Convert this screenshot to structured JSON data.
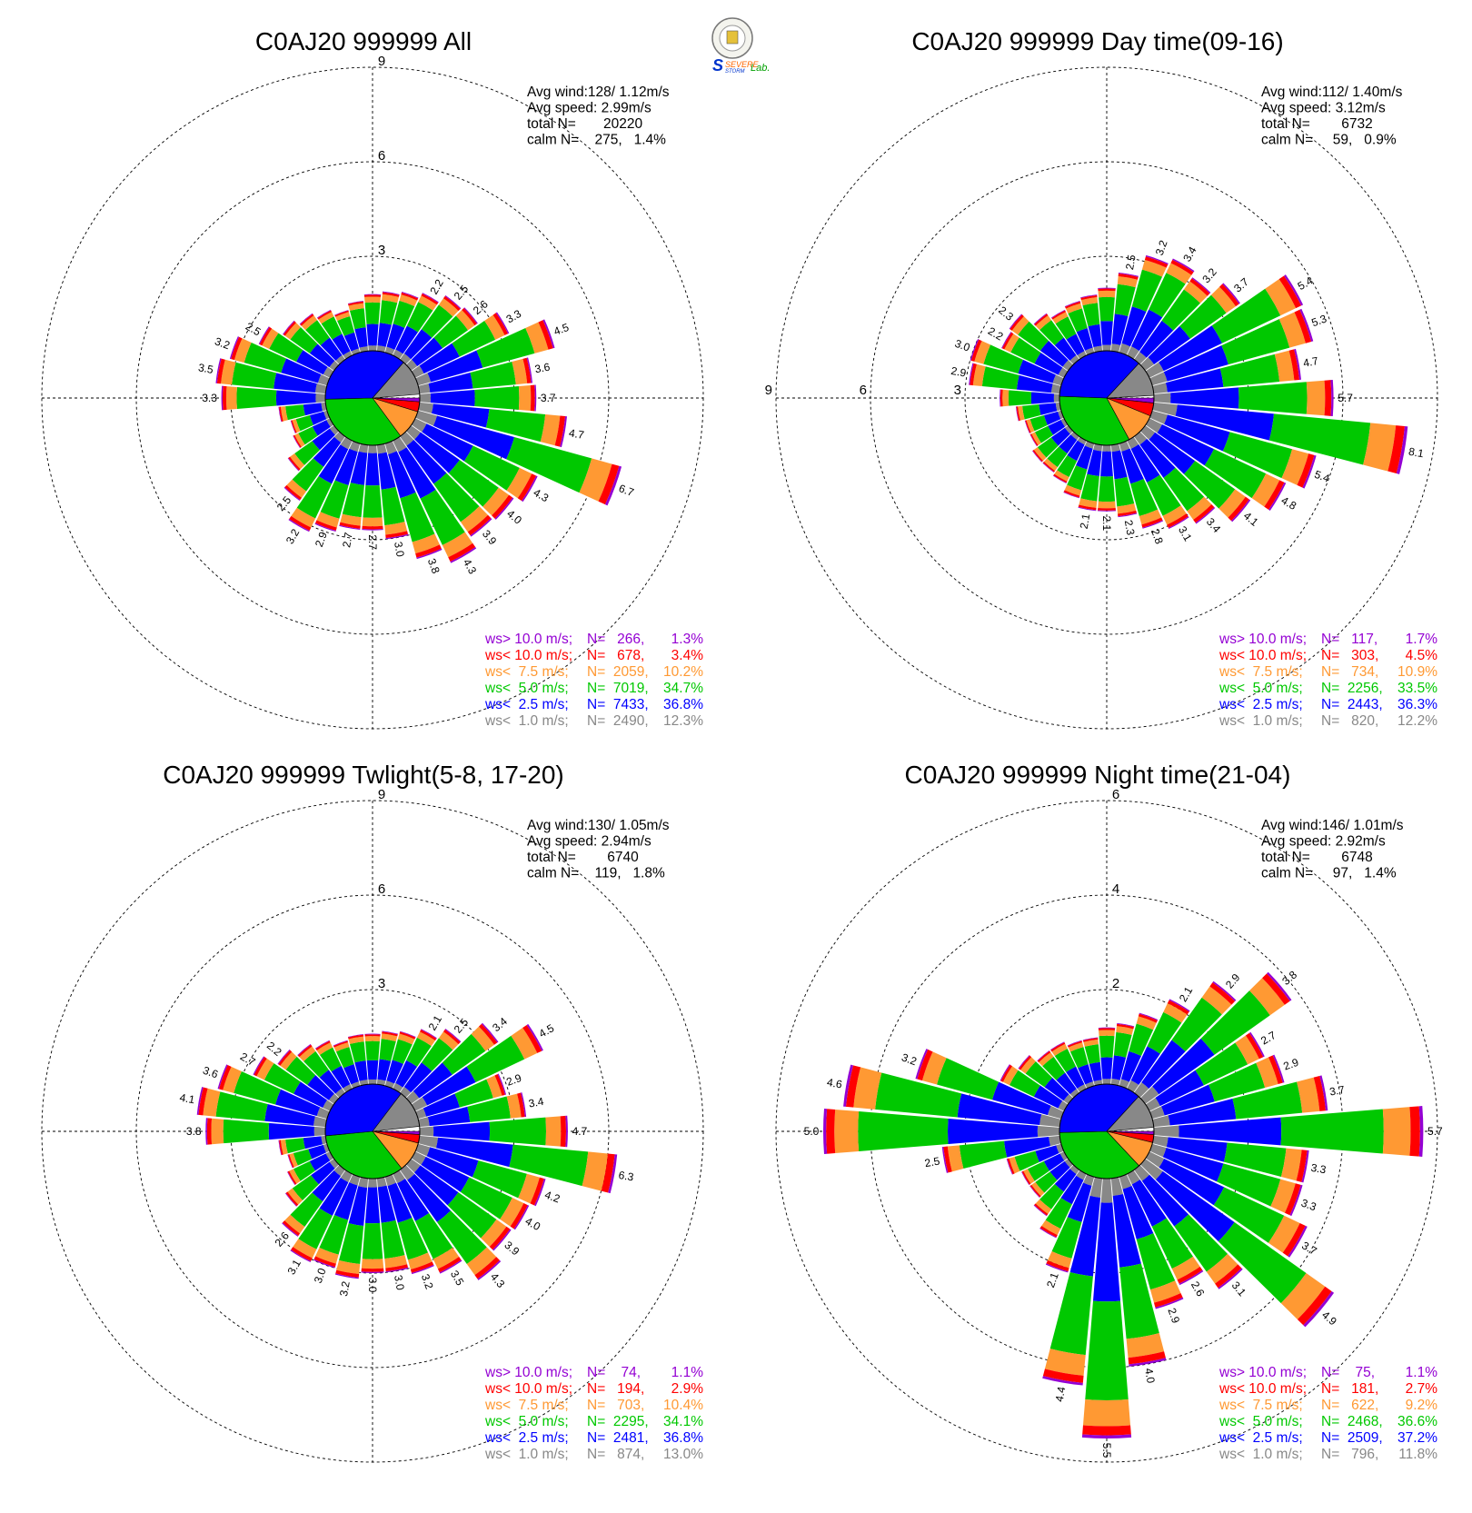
{
  "logo": {
    "name": "severe-storm-lab-logo",
    "text_line1": "SEVERE",
    "text_line2": "STORM",
    "text_lab": "Lab."
  },
  "bins": [
    {
      "label": "ws> 10.0 m/s;",
      "color": "#9400d3"
    },
    {
      "label": "ws< 10.0 m/s;",
      "color": "#ff0000"
    },
    {
      "label": "ws<  7.5 m/s;",
      "color": "#ff9933"
    },
    {
      "label": "ws<  5.0 m/s;",
      "color": "#00c800"
    },
    {
      "label": "ws<  2.5 m/s;",
      "color": "#0000ff"
    },
    {
      "label": "ws<  1.0 m/s;",
      "color": "#888888"
    }
  ],
  "chart_data": [
    {
      "type": "polar-bar (wind rose)",
      "title": "C0AJ20 999999 All",
      "rings": [
        3,
        6,
        9
      ],
      "ring_label_side": "top",
      "stats": {
        "avg_wind": "Avg wind:128/ 1.12m/s",
        "avg_speed": "Avg speed: 2.99m/s",
        "total": "total N=       20220",
        "calm": "calm N=    275,   1.4%"
      },
      "legend": [
        {
          "n": "N=   266,",
          "pct": "1.3%"
        },
        {
          "n": "N=   678,",
          "pct": "3.4%"
        },
        {
          "n": "N=  2059,",
          "pct": "10.2%"
        },
        {
          "n": "N=  7019,",
          "pct": "34.7%"
        },
        {
          "n": "N=  7433,",
          "pct": "36.8%"
        },
        {
          "n": "N=  2490,",
          "pct": "12.3%"
        }
      ],
      "pie": [
        1.3,
        3.4,
        10.2,
        34.7,
        36.8,
        12.3
      ],
      "directions": [
        0,
        10,
        20,
        30,
        40,
        50,
        60,
        70,
        80,
        90,
        100,
        110,
        120,
        130,
        140,
        150,
        160,
        170,
        180,
        190,
        200,
        210,
        220,
        230,
        240,
        250,
        260,
        270,
        280,
        290,
        300,
        310,
        320,
        330,
        340,
        350
      ],
      "totals": [
        1.8,
        1.9,
        2.0,
        2.2,
        2.5,
        2.6,
        3.3,
        4.5,
        3.6,
        3.7,
        4.7,
        6.7,
        4.3,
        4.0,
        3.9,
        4.3,
        3.8,
        3.0,
        2.7,
        2.7,
        2.9,
        3.2,
        2.5,
        1.8,
        1.3,
        1.2,
        1.5,
        3.3,
        3.5,
        3.2,
        2.5,
        2.0,
        1.8,
        1.6,
        1.4,
        1.6
      ],
      "labeled": [
        false,
        false,
        false,
        true,
        true,
        true,
        true,
        true,
        true,
        true,
        true,
        true,
        true,
        true,
        true,
        true,
        true,
        true,
        true,
        true,
        true,
        true,
        true,
        false,
        false,
        false,
        false,
        true,
        true,
        true,
        true,
        false,
        false,
        false,
        false,
        false
      ],
      "total_labels": [
        "",
        "",
        "",
        "2.2",
        "2.5",
        "2.6",
        "3.3",
        "4.5",
        "3.6",
        "3.7",
        "4.7",
        "6.7",
        "4.3",
        "4.0",
        "3.9",
        "4.3",
        "3.8",
        "3.0",
        "2.7",
        "2.7",
        "2.9",
        "3.2",
        "2.5",
        "",
        "",
        "",
        "",
        "3.3",
        "3.5",
        "3.2",
        "2.5",
        "",
        "",
        "",
        "",
        ""
      ]
    },
    {
      "type": "polar-bar (wind rose)",
      "title": "C0AJ20 999999 Day time(09-16)",
      "rings": [
        3,
        6,
        9
      ],
      "ring_label_side": "left",
      "stats": {
        "avg_wind": "Avg wind:112/ 1.40m/s",
        "avg_speed": "Avg speed: 3.12m/s",
        "total": "total N=        6732",
        "calm": "calm N=     59,   0.9%"
      },
      "legend": [
        {
          "n": "N=   117,",
          "pct": "1.7%"
        },
        {
          "n": "N=   303,",
          "pct": "4.5%"
        },
        {
          "n": "N=   734,",
          "pct": "10.9%"
        },
        {
          "n": "N=  2256,",
          "pct": "33.5%"
        },
        {
          "n": "N=  2443,",
          "pct": "36.3%"
        },
        {
          "n": "N=   820,",
          "pct": "12.2%"
        }
      ],
      "pie": [
        1.7,
        4.5,
        10.9,
        33.5,
        36.3,
        12.2
      ],
      "directions": [
        0,
        10,
        20,
        30,
        40,
        50,
        60,
        70,
        80,
        90,
        100,
        110,
        120,
        130,
        140,
        150,
        160,
        170,
        180,
        190,
        200,
        210,
        220,
        230,
        240,
        250,
        260,
        270,
        280,
        290,
        300,
        310,
        320,
        330,
        340,
        350
      ],
      "totals": [
        2.0,
        2.5,
        3.2,
        3.4,
        3.2,
        3.7,
        5.4,
        5.3,
        4.7,
        5.7,
        8.1,
        5.4,
        4.8,
        4.1,
        3.4,
        3.1,
        2.8,
        2.3,
        2.1,
        2.1,
        1.8,
        1.5,
        1.4,
        1.4,
        1.2,
        1.2,
        1.4,
        1.9,
        2.9,
        3.0,
        2.2,
        2.3,
        1.8,
        1.6,
        1.7,
        1.8
      ],
      "labeled": [
        false,
        true,
        true,
        true,
        true,
        true,
        true,
        true,
        true,
        true,
        true,
        true,
        true,
        true,
        true,
        true,
        true,
        true,
        true,
        true,
        false,
        false,
        false,
        false,
        false,
        false,
        false,
        false,
        true,
        true,
        true,
        true,
        false,
        false,
        false,
        false
      ],
      "total_labels": [
        "",
        "2.5",
        "3.2",
        "3.4",
        "3.2",
        "3.7",
        "5.4",
        "5.3",
        "4.7",
        "5.7",
        "8.1",
        "5.4",
        "4.8",
        "4.1",
        "3.4",
        "3.1",
        "2.8",
        "2.3",
        "2.1",
        "2.1",
        "",
        "",
        "",
        "",
        "",
        "",
        "",
        "",
        "2.9",
        "3.0",
        "2.2",
        "2.3",
        "",
        "",
        "",
        ""
      ]
    },
    {
      "type": "polar-bar (wind rose)",
      "title": "C0AJ20 999999 Twlight(5-8, 17-20)",
      "rings": [
        3,
        6,
        9
      ],
      "ring_label_side": "top",
      "stats": {
        "avg_wind": "Avg wind:130/ 1.05m/s",
        "avg_speed": "Avg speed: 2.94m/s",
        "total": "total N=        6740",
        "calm": "calm N=    119,   1.8%"
      },
      "legend": [
        {
          "n": "N=    74,",
          "pct": "1.1%"
        },
        {
          "n": "N=   194,",
          "pct": "2.9%"
        },
        {
          "n": "N=   703,",
          "pct": "10.4%"
        },
        {
          "n": "N=  2295,",
          "pct": "34.1%"
        },
        {
          "n": "N=  2481,",
          "pct": "36.8%"
        },
        {
          "n": "N=   874,",
          "pct": "13.0%"
        }
      ],
      "pie": [
        1.1,
        2.9,
        10.4,
        34.1,
        36.8,
        13.0
      ],
      "directions": [
        0,
        10,
        20,
        30,
        40,
        50,
        60,
        70,
        80,
        90,
        100,
        110,
        120,
        130,
        140,
        150,
        160,
        170,
        180,
        190,
        200,
        210,
        220,
        230,
        240,
        250,
        260,
        270,
        280,
        290,
        300,
        310,
        320,
        330,
        340,
        350
      ],
      "totals": [
        1.6,
        1.7,
        1.8,
        2.1,
        2.5,
        3.4,
        4.5,
        2.9,
        3.4,
        4.7,
        6.3,
        4.2,
        4.0,
        3.9,
        4.3,
        3.5,
        3.2,
        3.0,
        3.0,
        3.2,
        3.0,
        3.1,
        2.6,
        1.9,
        1.5,
        1.3,
        1.5,
        3.8,
        4.1,
        3.6,
        2.7,
        2.2,
        1.9,
        1.7,
        1.5,
        1.6
      ],
      "labeled": [
        false,
        false,
        false,
        true,
        true,
        true,
        true,
        true,
        true,
        true,
        true,
        true,
        true,
        true,
        true,
        true,
        true,
        true,
        true,
        true,
        true,
        true,
        true,
        false,
        false,
        false,
        false,
        true,
        true,
        true,
        true,
        true,
        false,
        false,
        false,
        false
      ],
      "total_labels": [
        "",
        "",
        "",
        "2.1",
        "2.5",
        "3.4",
        "4.5",
        "2.9",
        "3.4",
        "4.7",
        "6.3",
        "4.2",
        "4.0",
        "3.9",
        "4.3",
        "3.5",
        "3.2",
        "3.0",
        "3.0",
        "3.2",
        "3.0",
        "3.1",
        "2.6",
        "",
        "",
        "",
        "",
        "3.8",
        "4.1",
        "3.6",
        "2.7",
        "2.2",
        "",
        "",
        "",
        ""
      ]
    },
    {
      "type": "polar-bar (wind rose)",
      "title": "C0AJ20 999999 Night time(21-04)",
      "rings": [
        2,
        4,
        6
      ],
      "ring_label_side": "top",
      "stats": {
        "avg_wind": "Avg wind:146/ 1.01m/s",
        "avg_speed": "Avg speed: 2.92m/s",
        "total": "total N=        6748",
        "calm": "calm N=     97,   1.4%"
      },
      "legend": [
        {
          "n": "N=    75,",
          "pct": "1.1%"
        },
        {
          "n": "N=   181,",
          "pct": "2.7%"
        },
        {
          "n": "N=   622,",
          "pct": "9.2%"
        },
        {
          "n": "N=  2468,",
          "pct": "36.6%"
        },
        {
          "n": "N=  2509,",
          "pct": "37.2%"
        },
        {
          "n": "N=   796,",
          "pct": "11.8%"
        }
      ],
      "pie": [
        1.1,
        2.7,
        9.2,
        36.6,
        37.2,
        11.8
      ],
      "directions": [
        0,
        10,
        20,
        30,
        40,
        50,
        60,
        70,
        80,
        90,
        100,
        110,
        120,
        130,
        140,
        150,
        160,
        170,
        180,
        190,
        200,
        210,
        220,
        230,
        240,
        250,
        260,
        270,
        280,
        290,
        300,
        310,
        320,
        330,
        340,
        350
      ],
      "totals": [
        1.2,
        1.3,
        1.6,
        2.1,
        2.9,
        3.8,
        2.7,
        2.9,
        3.7,
        5.7,
        3.3,
        3.3,
        3.7,
        4.9,
        3.1,
        2.6,
        2.9,
        4.0,
        5.5,
        4.4,
        2.1,
        1.5,
        1.2,
        1.0,
        1.0,
        1.2,
        2.5,
        5.0,
        4.6,
        3.2,
        1.5,
        1.3,
        1.1,
        1.1,
        1.0,
        1.0
      ],
      "labeled": [
        false,
        false,
        false,
        true,
        true,
        true,
        true,
        true,
        true,
        true,
        true,
        true,
        true,
        true,
        true,
        true,
        true,
        true,
        true,
        true,
        true,
        false,
        false,
        false,
        false,
        false,
        true,
        true,
        true,
        true,
        false,
        false,
        false,
        false,
        false,
        false
      ],
      "total_labels": [
        "",
        "",
        "",
        "2.1",
        "2.9",
        "3.8",
        "2.7",
        "2.9",
        "3.7",
        "5.7",
        "3.3",
        "3.3",
        "3.7",
        "4.9",
        "3.1",
        "2.6",
        "2.9",
        "4.0",
        "5.5",
        "4.4",
        "2.1",
        "",
        "",
        "",
        "",
        "",
        "2.5",
        "5.0",
        "4.6",
        "3.2",
        "",
        "",
        "",
        "",
        "",
        ""
      ]
    }
  ]
}
